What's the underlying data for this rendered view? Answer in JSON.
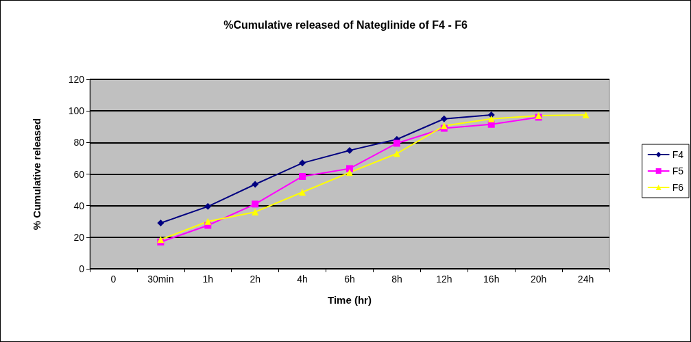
{
  "chart_data": {
    "type": "line",
    "title": "%Cumulative released of Nateglinide of F4 - F6",
    "xlabel": "Time (hr)",
    "ylabel": "% Cumulative released",
    "categories": [
      "0",
      "30min",
      "1h",
      "2h",
      "4h",
      "6h",
      "8h",
      "12h",
      "16h",
      "20h",
      "24h"
    ],
    "series": [
      {
        "name": "F4",
        "color": "#000080",
        "marker": "diamond",
        "values": [
          null,
          29,
          39.5,
          53.5,
          67,
          75,
          82,
          95,
          97.5,
          null,
          null
        ]
      },
      {
        "name": "F5",
        "color": "#ff00ff",
        "marker": "square",
        "values": [
          null,
          17,
          27.5,
          41,
          58.5,
          63.5,
          79.5,
          89,
          91.5,
          96,
          null
        ]
      },
      {
        "name": "F6",
        "color": "#ffff00",
        "marker": "triangle",
        "values": [
          null,
          18.5,
          30,
          36,
          48.5,
          61,
          73,
          90.5,
          95,
          97,
          97.5
        ]
      }
    ],
    "ylim": [
      0,
      120
    ],
    "yticks": [
      0,
      20,
      40,
      60,
      80,
      100,
      120
    ],
    "grid": "y",
    "legend": "right",
    "line_style": "solid"
  }
}
